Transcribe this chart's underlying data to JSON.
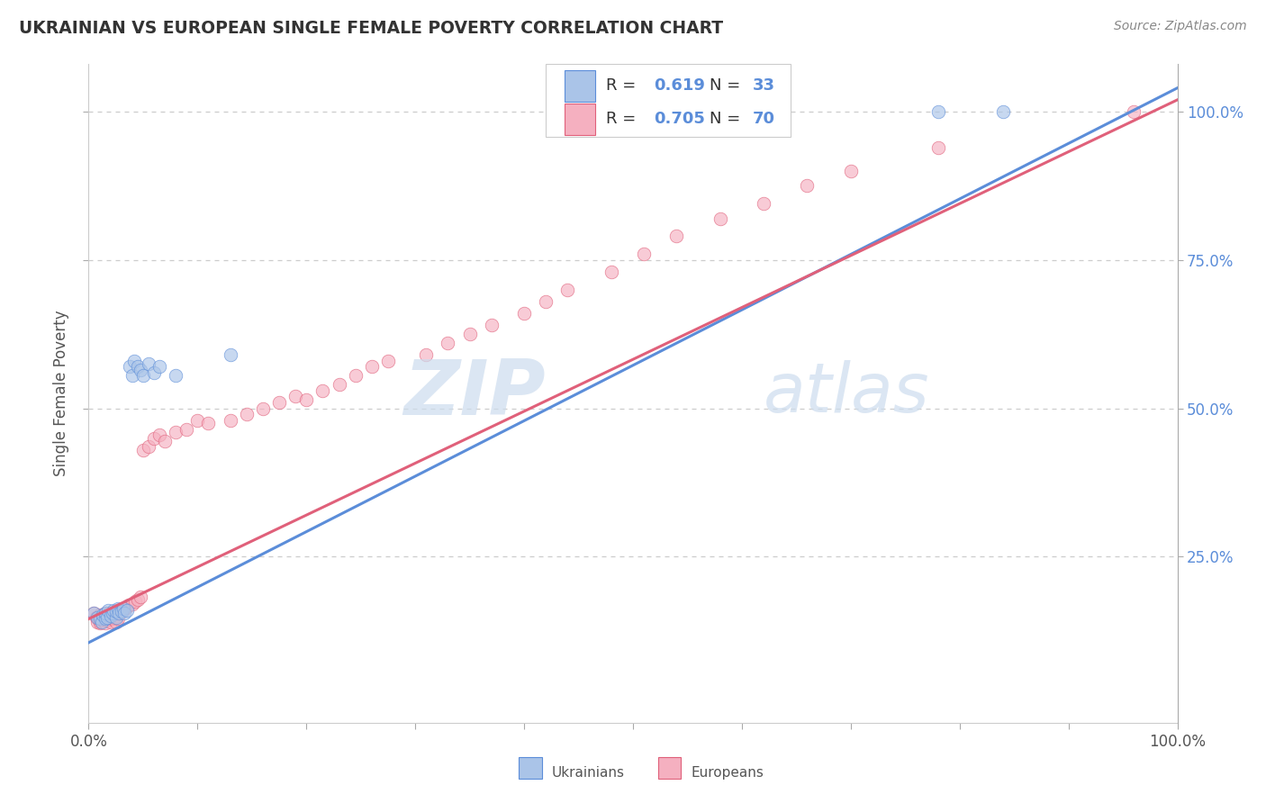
{
  "title": "UKRAINIAN VS EUROPEAN SINGLE FEMALE POVERTY CORRELATION CHART",
  "source": "Source: ZipAtlas.com",
  "ylabel": "Single Female Poverty",
  "xlim": [
    0.0,
    1.0
  ],
  "ylim": [
    -0.03,
    1.08
  ],
  "ytick_positions": [
    0.25,
    0.5,
    0.75,
    1.0
  ],
  "ytick_labels": [
    "25.0%",
    "50.0%",
    "75.0%",
    "100.0%"
  ],
  "blue_dot_color": "#aac4e8",
  "blue_line_color": "#5b8dd9",
  "pink_dot_color": "#f5b0c0",
  "pink_line_color": "#e0607a",
  "blue_edge_color": "#5b8dd9",
  "pink_edge_color": "#e0607a",
  "dot_alpha": 0.65,
  "dot_size": 110,
  "watermark_zip": "ZIP",
  "watermark_atlas": "atlas",
  "watermark_color_zip": "#d0dff0",
  "watermark_color_atlas": "#d0dff0",
  "background_color": "#ffffff",
  "grid_color": "#cccccc",
  "title_color": "#333333",
  "axis_label_color": "#555555",
  "right_tick_color": "#5b8dd9",
  "legend_R_N_color": "#5b8dd9",
  "blue_intercept": 0.105,
  "blue_slope": 0.935,
  "pink_intercept": 0.145,
  "pink_slope": 0.875,
  "uk_x": [
    0.005,
    0.008,
    0.01,
    0.012,
    0.013,
    0.015,
    0.015,
    0.017,
    0.018,
    0.02,
    0.022,
    0.023,
    0.025,
    0.025,
    0.027,
    0.028,
    0.03,
    0.032,
    0.033,
    0.035,
    0.038,
    0.04,
    0.042,
    0.045,
    0.048,
    0.05,
    0.055,
    0.06,
    0.065,
    0.08,
    0.13,
    0.78,
    0.84
  ],
  "uk_y": [
    0.155,
    0.148,
    0.145,
    0.14,
    0.152,
    0.145,
    0.155,
    0.148,
    0.16,
    0.15,
    0.155,
    0.16,
    0.148,
    0.158,
    0.162,
    0.155,
    0.158,
    0.162,
    0.155,
    0.16,
    0.57,
    0.555,
    0.58,
    0.57,
    0.565,
    0.555,
    0.575,
    0.56,
    0.57,
    0.555,
    0.59,
    1.0,
    1.0
  ],
  "eu_x": [
    0.005,
    0.007,
    0.008,
    0.009,
    0.01,
    0.01,
    0.011,
    0.012,
    0.013,
    0.014,
    0.015,
    0.015,
    0.016,
    0.017,
    0.018,
    0.019,
    0.02,
    0.021,
    0.022,
    0.023,
    0.024,
    0.025,
    0.026,
    0.027,
    0.028,
    0.03,
    0.032,
    0.033,
    0.035,
    0.037,
    0.04,
    0.043,
    0.045,
    0.048,
    0.05,
    0.055,
    0.06,
    0.065,
    0.07,
    0.08,
    0.09,
    0.1,
    0.11,
    0.13,
    0.145,
    0.16,
    0.175,
    0.19,
    0.2,
    0.215,
    0.23,
    0.245,
    0.26,
    0.275,
    0.31,
    0.33,
    0.35,
    0.37,
    0.4,
    0.42,
    0.44,
    0.48,
    0.51,
    0.54,
    0.58,
    0.62,
    0.66,
    0.7,
    0.78,
    0.96
  ],
  "eu_y": [
    0.155,
    0.148,
    0.14,
    0.145,
    0.138,
    0.152,
    0.14,
    0.148,
    0.142,
    0.15,
    0.138,
    0.155,
    0.143,
    0.148,
    0.145,
    0.155,
    0.14,
    0.148,
    0.145,
    0.152,
    0.148,
    0.14,
    0.15,
    0.145,
    0.155,
    0.158,
    0.16,
    0.162,
    0.165,
    0.168,
    0.17,
    0.175,
    0.178,
    0.182,
    0.43,
    0.435,
    0.45,
    0.455,
    0.445,
    0.46,
    0.465,
    0.48,
    0.475,
    0.48,
    0.49,
    0.5,
    0.51,
    0.52,
    0.515,
    0.53,
    0.54,
    0.555,
    0.57,
    0.58,
    0.59,
    0.61,
    0.625,
    0.64,
    0.66,
    0.68,
    0.7,
    0.73,
    0.76,
    0.79,
    0.82,
    0.845,
    0.875,
    0.9,
    0.94,
    1.0
  ]
}
